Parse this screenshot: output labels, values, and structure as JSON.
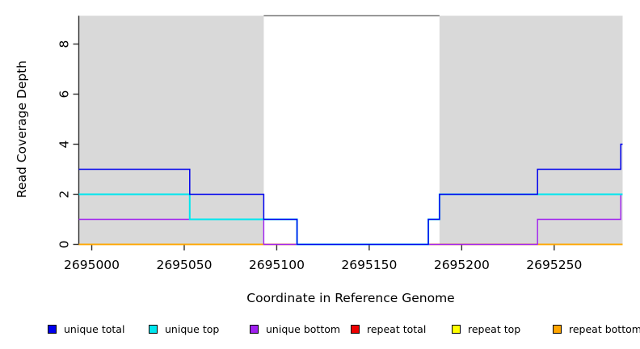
{
  "chart_data": {
    "type": "line",
    "subtype": "step-coverage",
    "title": "",
    "xlabel": "Coordinate in Reference Genome",
    "ylabel": "Read Coverage Depth",
    "xlim": [
      2694993,
      2695287
    ],
    "ylim": [
      0,
      9.13
    ],
    "x_ticks": [
      2695000,
      2695050,
      2695100,
      2695150,
      2695200,
      2695250
    ],
    "y_ticks": [
      0,
      2,
      4,
      6,
      8
    ],
    "grid": false,
    "legend_position": "bottom",
    "shaded_regions": [
      {
        "x0": 2694993,
        "x1": 2695093,
        "color": "#d9d9d9"
      },
      {
        "x0": 2695188,
        "x1": 2695287,
        "color": "#d9d9d9"
      }
    ],
    "cap_line": {
      "x0": 2695093,
      "x1": 2695188,
      "y": 9.13,
      "color": "#7a7a7a"
    },
    "series": [
      {
        "name": "unique total",
        "color": "#0000ee",
        "steps": [
          [
            2694993,
            3
          ],
          [
            2695053,
            2
          ],
          [
            2695093,
            1
          ],
          [
            2695111,
            0
          ],
          [
            2695182,
            1
          ],
          [
            2695188,
            2
          ],
          [
            2695241,
            3
          ],
          [
            2695286,
            4
          ],
          [
            2695287,
            4
          ]
        ]
      },
      {
        "name": "unique top",
        "color": "#00e6ee",
        "steps": [
          [
            2694993,
            2
          ],
          [
            2695053,
            1
          ],
          [
            2695111,
            0
          ],
          [
            2695182,
            1
          ],
          [
            2695188,
            2
          ],
          [
            2695287,
            2
          ]
        ]
      },
      {
        "name": "unique bottom",
        "color": "#a020f0",
        "steps": [
          [
            2694993,
            1
          ],
          [
            2695093,
            0
          ],
          [
            2695241,
            1
          ],
          [
            2695286,
            2
          ],
          [
            2695287,
            2
          ]
        ]
      },
      {
        "name": "repeat total",
        "color": "#ee0000",
        "steps": [
          [
            2694993,
            0
          ],
          [
            2695287,
            0
          ]
        ]
      },
      {
        "name": "repeat top",
        "color": "#ffff00",
        "steps": [
          [
            2694993,
            0
          ],
          [
            2695287,
            0
          ]
        ]
      },
      {
        "name": "repeat bottom",
        "color": "#ffa500",
        "steps": [
          [
            2694993,
            0
          ],
          [
            2695287,
            0
          ]
        ]
      }
    ]
  },
  "legend": {
    "items": [
      {
        "label": "unique total",
        "color": "#0000ee"
      },
      {
        "label": "unique top",
        "color": "#00e6ee"
      },
      {
        "label": "unique bottom",
        "color": "#a020f0"
      },
      {
        "label": "repeat total",
        "color": "#ee0000"
      },
      {
        "label": "repeat top",
        "color": "#ffff00"
      },
      {
        "label": "repeat bottom",
        "color": "#ffa500"
      }
    ]
  },
  "style_colors": {
    "axis": "#2e2e2e",
    "text": "#000000",
    "plot_background": "#ffffff"
  }
}
